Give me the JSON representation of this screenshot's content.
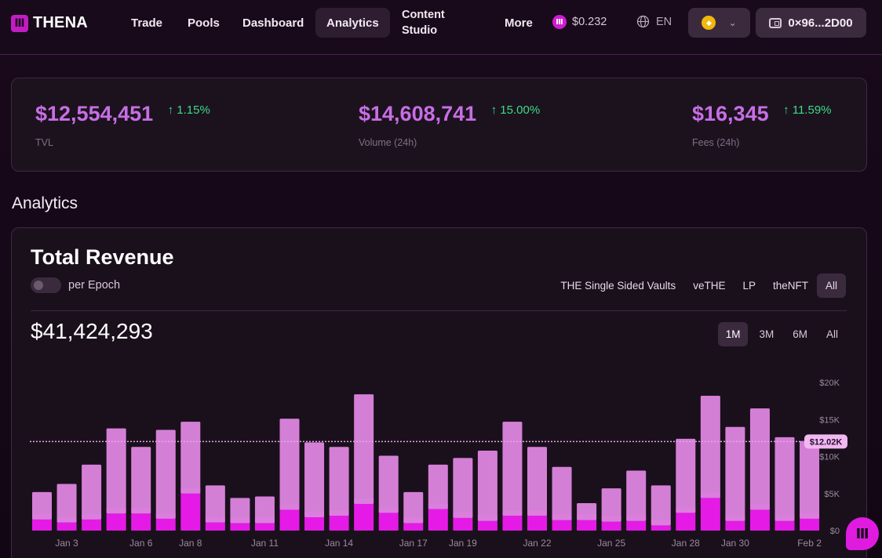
{
  "header": {
    "logo_text": "THENA",
    "logo_icon": "thena-logo-icon",
    "nav": [
      {
        "label": "Trade"
      },
      {
        "label": "Pools"
      },
      {
        "label": "Dashboard"
      },
      {
        "label": "Analytics",
        "active": true
      },
      {
        "label": "Content Studio"
      },
      {
        "label": "More"
      }
    ],
    "token_price": "$0.232",
    "language": "EN",
    "wallet_address": "0×96...2D00",
    "chain_icon": "bnb-chain-icon"
  },
  "stats": [
    {
      "value": "$12,554,451",
      "change": "1.15%",
      "label": "TVL"
    },
    {
      "value": "$14,608,741",
      "change": "15.00%",
      "label": "Volume (24h)"
    },
    {
      "value": "$16,345",
      "change": "11.59%",
      "label": "Fees (24h)"
    }
  ],
  "section_title": "Analytics",
  "revenue": {
    "title": "Total Revenue",
    "toggle_label": "per Epoch",
    "filters": [
      "THE Single Sided Vaults",
      "veTHE",
      "LP",
      "theNFT",
      "All"
    ],
    "active_filter": "All",
    "total": "$41,424,293",
    "ranges": [
      "1M",
      "3M",
      "6M",
      "All"
    ],
    "active_range": "1M",
    "marker_label": "$12.02K"
  },
  "colors": {
    "accent": "#e01be0",
    "bar_light": "#d47fd6",
    "bar_dark": "#e51ae6",
    "positive": "#3ddc84",
    "value_text": "#c86ee5"
  },
  "chart_data": {
    "type": "bar",
    "stacked": true,
    "x": [
      "Jan 2",
      "Jan 3",
      "Jan 4",
      "Jan 5",
      "Jan 6",
      "Jan 7",
      "Jan 8",
      "Jan 9",
      "Jan 10",
      "Jan 11",
      "Jan 12",
      "Jan 13",
      "Jan 14",
      "Jan 15",
      "Jan 16",
      "Jan 17",
      "Jan 18",
      "Jan 19",
      "Jan 20",
      "Jan 21",
      "Jan 22",
      "Jan 23",
      "Jan 24",
      "Jan 25",
      "Jan 26",
      "Jan 27",
      "Jan 28",
      "Jan 29",
      "Jan 30",
      "Jan 31",
      "Feb 1",
      "Feb 2"
    ],
    "series": [
      {
        "values": [
          1500,
          1100,
          1500,
          2300,
          2300,
          1600,
          5000,
          1100,
          1000,
          1000,
          2800,
          1800,
          2000,
          3600,
          2400,
          1000,
          2900,
          1700,
          1300,
          2000,
          2000,
          1400,
          1400,
          1200,
          1300,
          700,
          2400,
          4400,
          1300,
          2800,
          1300,
          1600
        ]
      },
      {
        "values": [
          3700,
          5200,
          7400,
          11500,
          9000,
          12000,
          9700,
          5000,
          3400,
          3600,
          12300,
          10100,
          9300,
          14800,
          7700,
          4200,
          6000,
          8100,
          9500,
          12700,
          9300,
          7200,
          2300,
          4500,
          6800,
          5400,
          10000,
          13800,
          12700,
          13700,
          11300,
          10500
        ]
      }
    ],
    "ylim": [
      0,
      20000
    ],
    "y_ticks": [
      "$0",
      "$5K",
      "$10K",
      "$15K",
      "$20K"
    ],
    "x_tick_labels": [
      {
        "i": 1,
        "label": "Jan 3"
      },
      {
        "i": 4,
        "label": "Jan 6"
      },
      {
        "i": 6,
        "label": "Jan 8"
      },
      {
        "i": 9,
        "label": "Jan 11"
      },
      {
        "i": 12,
        "label": "Jan 14"
      },
      {
        "i": 15,
        "label": "Jan 17"
      },
      {
        "i": 17,
        "label": "Jan 19"
      },
      {
        "i": 20,
        "label": "Jan 22"
      },
      {
        "i": 23,
        "label": "Jan 25"
      },
      {
        "i": 26,
        "label": "Jan 28"
      },
      {
        "i": 28,
        "label": "Jan 30"
      },
      {
        "i": 31,
        "label": "Feb 2"
      }
    ],
    "reference_line": 12020
  }
}
